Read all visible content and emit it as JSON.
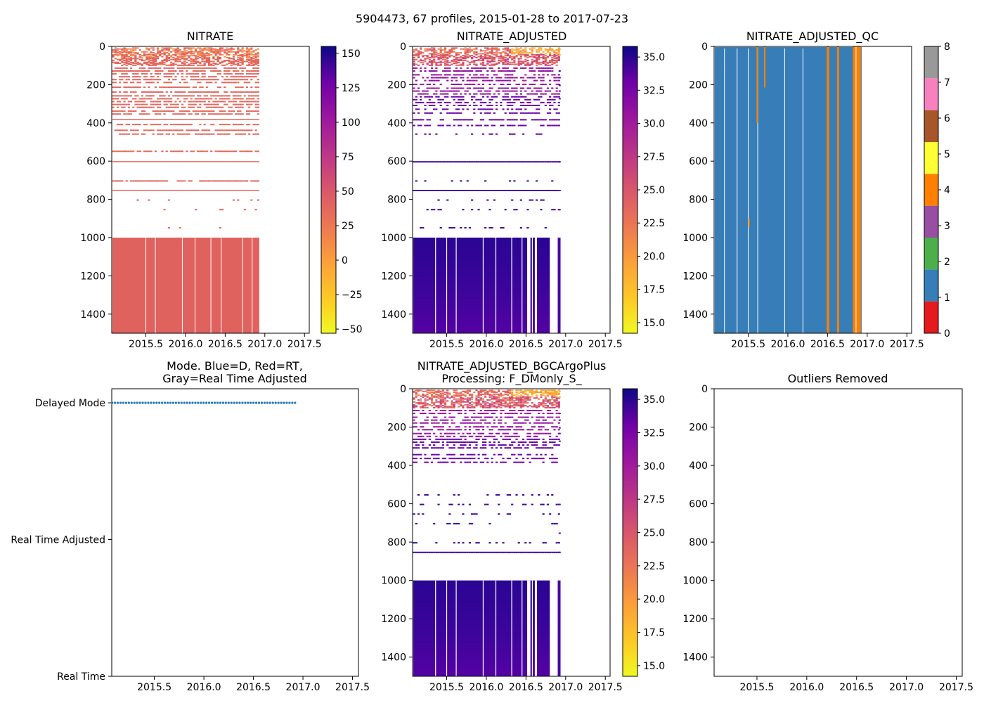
{
  "figure": {
    "suptitle": "5904473, 67 profiles, 2015-01-28 to 2017-07-23"
  },
  "colors": {
    "nitrate_low": "#f0f921",
    "nitrate_mid": "#e16462",
    "nitrate_high": "#0d0887",
    "qc_1": "#377eb8",
    "qc_4": "#ff7f00",
    "mode_dot": "#1f77b4",
    "cell_gap": "#ffffff"
  },
  "chart_data": [
    {
      "id": "nitrate",
      "type": "heatmap",
      "title": "NITRATE",
      "xlabel": "",
      "ylabel": "",
      "xlim": [
        2015.07,
        2017.56
      ],
      "ylim": [
        1500,
        0
      ],
      "xticks": [
        "2015.5",
        "2016.0",
        "2016.5",
        "2017.0",
        "2017.5"
      ],
      "yticks": [
        "0",
        "200",
        "400",
        "600",
        "800",
        "1000",
        "1200",
        "1400"
      ],
      "colormap": "plasma_r",
      "clim": [
        -53,
        155
      ],
      "colorbar_ticks": [
        "150",
        "125",
        "100",
        "75",
        "50",
        "25",
        "0",
        "−25",
        "−50"
      ],
      "profile_range": [
        2015.075,
        2016.93
      ],
      "surface_layer_values": [
        20,
        28
      ],
      "deep_layer_value": 30
    },
    {
      "id": "nitrate_adjusted",
      "type": "heatmap",
      "title": "NITRATE_ADJUSTED",
      "xlabel": "",
      "ylabel": "",
      "xlim": [
        2015.07,
        2017.56
      ],
      "ylim": [
        1500,
        0
      ],
      "xticks": [
        "2015.5",
        "2016.0",
        "2016.5",
        "2017.0",
        "2017.5"
      ],
      "yticks": [
        "0",
        "200",
        "400",
        "600",
        "800",
        "1000",
        "1200",
        "1400"
      ],
      "colormap": "plasma_r",
      "clim": [
        14.2,
        35.8
      ],
      "colorbar_ticks": [
        "35.0",
        "32.5",
        "30.0",
        "27.5",
        "25.0",
        "22.5",
        "20.0",
        "17.5",
        "15.0"
      ],
      "profile_range": [
        2015.075,
        2016.93
      ],
      "deep_layer_range": [
        32.5,
        35
      ]
    },
    {
      "id": "nitrate_adjusted_qc",
      "type": "heatmap",
      "title": "NITRATE_ADJUSTED_QC",
      "xlabel": "",
      "ylabel": "",
      "xlim": [
        2015.07,
        2017.56
      ],
      "ylim": [
        1500,
        0
      ],
      "xticks": [
        "2015.5",
        "2016.0",
        "2016.5",
        "2017.0",
        "2017.5"
      ],
      "yticks": [
        "0",
        "200",
        "400",
        "600",
        "800",
        "1000",
        "1200",
        "1400"
      ],
      "colorbar_ticks": [
        "8",
        "7",
        "6",
        "5",
        "4",
        "3",
        "2",
        "1",
        "0"
      ],
      "qc_colors": [
        "#e41a1c",
        "#377eb8",
        "#4daf4a",
        "#984ea3",
        "#ff7f00",
        "#ffff33",
        "#a65628",
        "#f781bf",
        "#999999"
      ],
      "dominant_flag": 1,
      "flag4_profiles": [
        2015.61,
        2016.51,
        2016.63,
        2016.84,
        2016.88
      ]
    },
    {
      "id": "mode",
      "type": "scatter",
      "title": "Mode. Blue=D, Red=RT,",
      "title_line2": "Gray=Real Time Adjusted",
      "xlim": [
        2015.07,
        2017.56
      ],
      "xticks": [
        "2015.5",
        "2016.0",
        "2016.5",
        "2017.0",
        "2017.5"
      ],
      "categories": [
        "Delayed Mode",
        "Real Time Adjusted",
        "Real Time"
      ],
      "points_range": [
        2015.075,
        2016.92
      ],
      "point_count": 67,
      "point_category": "Delayed Mode",
      "series_color": "#1f77b4"
    },
    {
      "id": "bgcargoplus",
      "type": "heatmap",
      "title": "NITRATE_ADJUSTED_BGCArgoPlus",
      "title_line2": "Processing: F_DMonly_S_",
      "xlim": [
        2015.07,
        2017.56
      ],
      "ylim": [
        1500,
        0
      ],
      "xticks": [
        "2015.5",
        "2016.0",
        "2016.5",
        "2017.0",
        "2017.5"
      ],
      "yticks": [
        "0",
        "200",
        "400",
        "600",
        "800",
        "1000",
        "1200",
        "1400"
      ],
      "colormap": "plasma_r",
      "clim": [
        14.2,
        35.8
      ],
      "colorbar_ticks": [
        "35.0",
        "32.5",
        "30.0",
        "27.5",
        "25.0",
        "22.5",
        "20.0",
        "17.5",
        "15.0"
      ],
      "profile_range": [
        2015.075,
        2016.93
      ],
      "deep_layer_range": [
        32.5,
        35
      ]
    },
    {
      "id": "outliers",
      "type": "scatter",
      "title": "Outliers Removed",
      "xlim": [
        2015.07,
        2017.56
      ],
      "ylim": [
        1500,
        0
      ],
      "xticks": [
        "2015.5",
        "2016.0",
        "2016.5",
        "2017.0",
        "2017.5"
      ],
      "yticks": [
        "0",
        "200",
        "400",
        "600",
        "800",
        "1000",
        "1200",
        "1400"
      ],
      "points": []
    }
  ]
}
